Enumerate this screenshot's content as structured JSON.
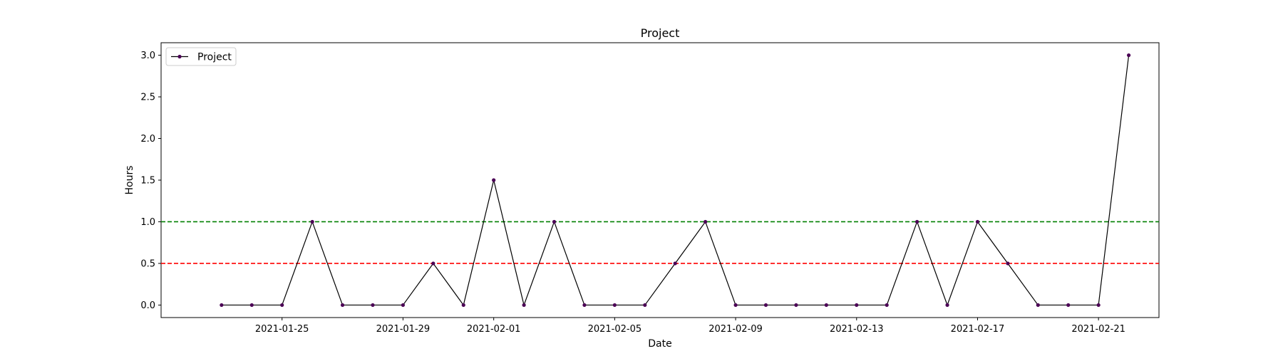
{
  "chart_data": {
    "type": "line",
    "title": "Project",
    "xlabel": "Date",
    "ylabel": "Hours",
    "x": [
      "2021-01-23",
      "2021-01-24",
      "2021-01-25",
      "2021-01-26",
      "2021-01-27",
      "2021-01-28",
      "2021-01-29",
      "2021-01-30",
      "2021-01-31",
      "2021-02-01",
      "2021-02-02",
      "2021-02-03",
      "2021-02-04",
      "2021-02-05",
      "2021-02-06",
      "2021-02-07",
      "2021-02-08",
      "2021-02-09",
      "2021-02-10",
      "2021-02-11",
      "2021-02-12",
      "2021-02-13",
      "2021-02-14",
      "2021-02-15",
      "2021-02-16",
      "2021-02-17",
      "2021-02-18",
      "2021-02-19",
      "2021-02-20",
      "2021-02-21",
      "2021-02-22"
    ],
    "series": [
      {
        "name": "Project",
        "color": "#000000",
        "marker_color": "#4b0055",
        "values": [
          0,
          0,
          0,
          1,
          0,
          0,
          0,
          0.5,
          0,
          1.5,
          0,
          1,
          0,
          0,
          0,
          0.5,
          1,
          0,
          0,
          0,
          0,
          0,
          0,
          1,
          0,
          1,
          0.5,
          0,
          0,
          0,
          3
        ]
      }
    ],
    "reference_lines": [
      {
        "y": 1.0,
        "color": "#008000",
        "style": "dashed"
      },
      {
        "y": 0.5,
        "color": "#ff0000",
        "style": "dashed"
      }
    ],
    "xlim": [
      "2021-01-21",
      "2021-02-23"
    ],
    "ylim": [
      -0.15,
      3.15
    ],
    "x_ticks": [
      "2021-01-25",
      "2021-01-29",
      "2021-02-01",
      "2021-02-05",
      "2021-02-09",
      "2021-02-13",
      "2021-02-17",
      "2021-02-21"
    ],
    "y_ticks": [
      0.0,
      0.5,
      1.0,
      1.5,
      2.0,
      2.5,
      3.0
    ],
    "y_tick_labels": [
      "0.0",
      "0.5",
      "1.0",
      "1.5",
      "2.0",
      "2.5",
      "3.0"
    ],
    "legend_position": "top-left",
    "grid": false
  }
}
